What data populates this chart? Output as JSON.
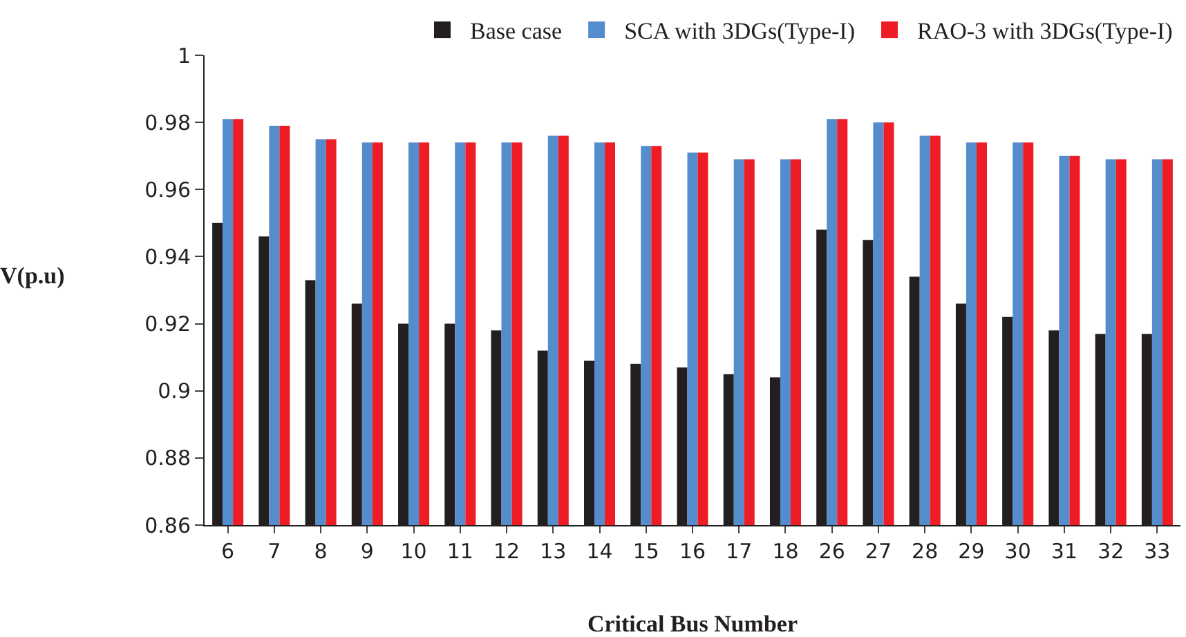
{
  "chart_data": {
    "type": "bar",
    "xlabel": "Critical Bus Number",
    "ylabel": "V(p.u)",
    "categories": [
      "6",
      "7",
      "8",
      "9",
      "10",
      "11",
      "12",
      "13",
      "14",
      "15",
      "16",
      "17",
      "18",
      "26",
      "27",
      "28",
      "29",
      "30",
      "31",
      "32",
      "33"
    ],
    "series": [
      {
        "name": "Base case",
        "color": "#231f20",
        "values": [
          0.95,
          0.946,
          0.933,
          0.926,
          0.92,
          0.92,
          0.918,
          0.912,
          0.909,
          0.908,
          0.907,
          0.905,
          0.904,
          0.948,
          0.945,
          0.934,
          0.926,
          0.922,
          0.918,
          0.917,
          0.917
        ]
      },
      {
        "name": "SCA with 3DGs(Type-I)",
        "color": "#558ccb",
        "values": [
          0.981,
          0.979,
          0.975,
          0.974,
          0.974,
          0.974,
          0.974,
          0.976,
          0.974,
          0.973,
          0.971,
          0.969,
          0.969,
          0.981,
          0.98,
          0.976,
          0.974,
          0.974,
          0.97,
          0.969,
          0.969
        ]
      },
      {
        "name": "RAO-3 with 3DGs(Type-I)",
        "color": "#ee1c24",
        "values": [
          0.981,
          0.979,
          0.975,
          0.974,
          0.974,
          0.974,
          0.974,
          0.976,
          0.974,
          0.973,
          0.971,
          0.969,
          0.969,
          0.981,
          0.98,
          0.976,
          0.974,
          0.974,
          0.97,
          0.969,
          0.969
        ]
      }
    ],
    "ylim": [
      0.86,
      1
    ],
    "yticks": [
      0.86,
      0.88,
      0.9,
      0.92,
      0.94,
      0.96,
      0.98,
      1
    ],
    "grid": false,
    "legend": "top right"
  }
}
